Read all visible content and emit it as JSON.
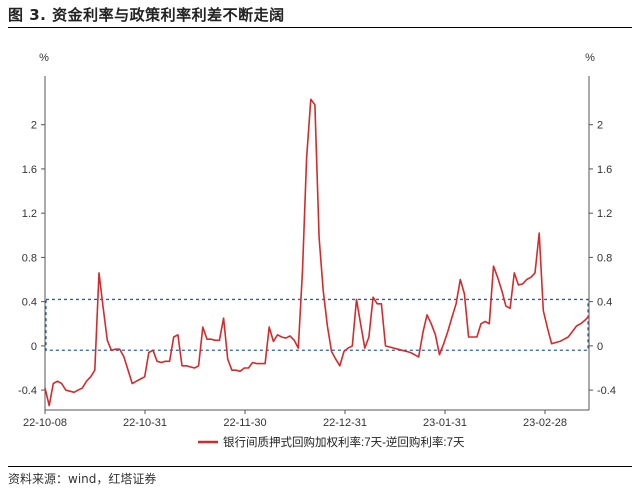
{
  "figure": {
    "title": "图 3. 资金利率与政策利率利差不断走阔",
    "source": "资料来源：wind，红塔证券"
  },
  "chart_data": {
    "type": "line",
    "ylabel_left": "%",
    "ylabel_right": "%",
    "ylim": [
      -0.58,
      2.35
    ],
    "y_ticks": [
      -0.4,
      0,
      0.4,
      0.8,
      1.2,
      1.6,
      2
    ],
    "y_tick_labels": [
      "-0.4",
      "0",
      "0.4",
      "0.8",
      "1.2",
      "1.6",
      "2"
    ],
    "x_tick_labels": [
      "22-10-08",
      "22-10-31",
      "22-11-30",
      "22-12-31",
      "23-01-31",
      "23-02-28"
    ],
    "legend_position": "bottom-center",
    "grid": false,
    "colors": {
      "line": "#d32b2b",
      "band": "#2f5fa8"
    },
    "band": {
      "upper": 0.42,
      "lower": -0.04,
      "style": "dashed"
    },
    "series": [
      {
        "name": "银行间质押式回购加权利率:7天-逆回购利率:7天",
        "values": [
          -0.38,
          -0.54,
          -0.34,
          -0.32,
          -0.34,
          -0.4,
          -0.41,
          -0.42,
          -0.4,
          -0.38,
          -0.32,
          -0.28,
          -0.22,
          0.66,
          0.35,
          0.05,
          -0.04,
          -0.03,
          -0.03,
          -0.1,
          -0.22,
          -0.34,
          -0.32,
          -0.3,
          -0.28,
          -0.06,
          -0.04,
          -0.14,
          -0.15,
          -0.14,
          -0.14,
          0.08,
          0.1,
          -0.18,
          -0.18,
          -0.19,
          -0.2,
          -0.18,
          0.17,
          0.06,
          0.06,
          0.05,
          0.05,
          0.25,
          -0.12,
          -0.22,
          -0.22,
          -0.23,
          -0.2,
          -0.2,
          -0.15,
          -0.16,
          -0.16,
          -0.16,
          0.17,
          0.04,
          0.1,
          0.08,
          0.07,
          0.09,
          0.05,
          -0.02,
          0.68,
          1.7,
          2.23,
          2.18,
          0.98,
          0.5,
          0.18,
          -0.05,
          -0.12,
          -0.18,
          -0.05,
          -0.02,
          0.0,
          0.42,
          0.2,
          -0.02,
          0.08,
          0.44,
          0.38,
          0.38,
          0.0,
          -0.01,
          -0.02,
          -0.03,
          -0.04,
          -0.05,
          -0.06,
          -0.08,
          -0.1,
          0.12,
          0.28,
          0.2,
          0.1,
          -0.08,
          0.02,
          0.13,
          0.26,
          0.38,
          0.6,
          0.47,
          0.08,
          0.08,
          0.08,
          0.2,
          0.22,
          0.2,
          0.72,
          0.62,
          0.5,
          0.36,
          0.34,
          0.66,
          0.55,
          0.56,
          0.6,
          0.62,
          0.66,
          1.02,
          0.32,
          0.16,
          0.02,
          0.03,
          0.04,
          0.06,
          0.08,
          0.13,
          0.18,
          0.2,
          0.23,
          0.27
        ]
      }
    ]
  }
}
